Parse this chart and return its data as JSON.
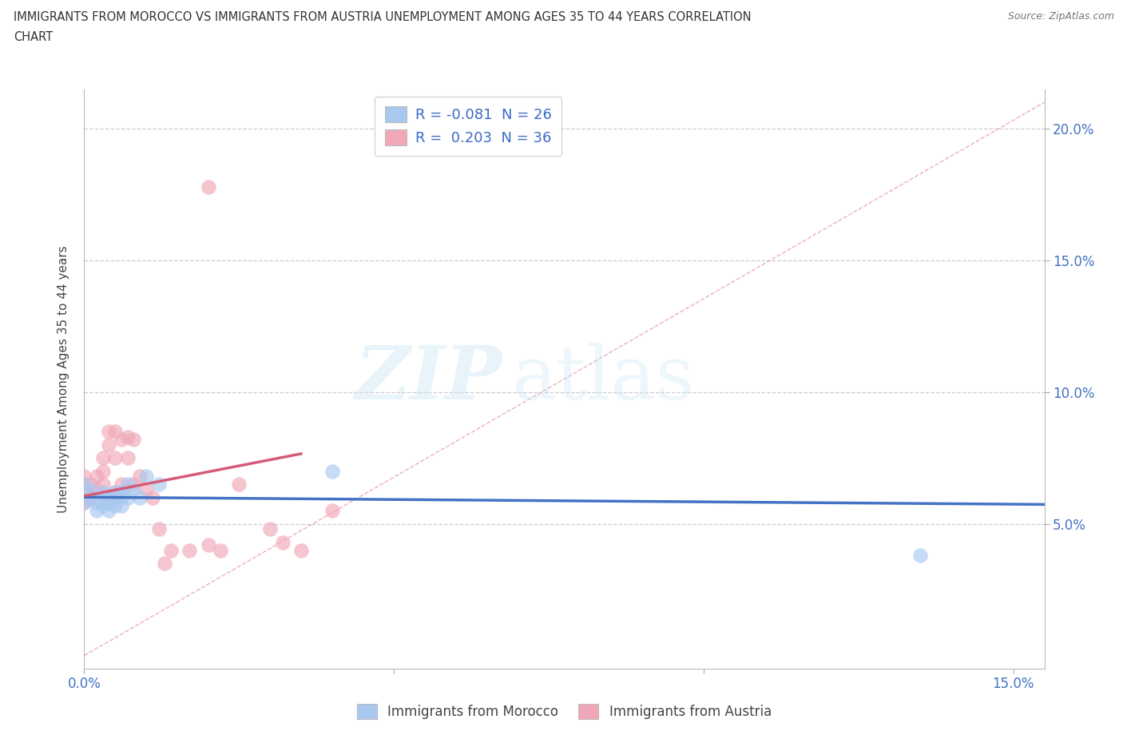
{
  "title_line1": "IMMIGRANTS FROM MOROCCO VS IMMIGRANTS FROM AUSTRIA UNEMPLOYMENT AMONG AGES 35 TO 44 YEARS CORRELATION",
  "title_line2": "CHART",
  "source": "Source: ZipAtlas.com",
  "ylabel": "Unemployment Among Ages 35 to 44 years",
  "xlim": [
    0.0,
    0.155
  ],
  "ylim": [
    -0.005,
    0.215
  ],
  "morocco_R": -0.081,
  "morocco_N": 26,
  "austria_R": 0.203,
  "austria_N": 36,
  "morocco_color": "#a8c8f0",
  "austria_color": "#f0a8b8",
  "morocco_line_color": "#4472c4",
  "austria_line_color": "#d45b7a",
  "diagonal_color": "#e8b0b8",
  "watermark_zip": "ZIP",
  "watermark_atlas": "atlas",
  "morocco_x": [
    0.0,
    0.0,
    0.001,
    0.001,
    0.002,
    0.002,
    0.003,
    0.003,
    0.003,
    0.004,
    0.004,
    0.004,
    0.005,
    0.005,
    0.005,
    0.006,
    0.006,
    0.006,
    0.007,
    0.007,
    0.008,
    0.009,
    0.01,
    0.012,
    0.04,
    0.135
  ],
  "morocco_y": [
    0.065,
    0.058,
    0.063,
    0.06,
    0.058,
    0.055,
    0.062,
    0.06,
    0.057,
    0.06,
    0.058,
    0.055,
    0.062,
    0.06,
    0.057,
    0.062,
    0.06,
    0.057,
    0.065,
    0.06,
    0.063,
    0.06,
    0.068,
    0.065,
    0.07,
    0.038
  ],
  "austria_x": [
    0.0,
    0.0,
    0.0,
    0.001,
    0.001,
    0.002,
    0.002,
    0.003,
    0.003,
    0.003,
    0.004,
    0.004,
    0.005,
    0.005,
    0.005,
    0.006,
    0.006,
    0.007,
    0.007,
    0.008,
    0.008,
    0.009,
    0.01,
    0.011,
    0.012,
    0.013,
    0.014,
    0.017,
    0.02,
    0.022,
    0.025,
    0.03,
    0.032,
    0.035,
    0.04,
    0.02
  ],
  "austria_y": [
    0.068,
    0.063,
    0.058,
    0.065,
    0.06,
    0.068,
    0.063,
    0.075,
    0.07,
    0.065,
    0.085,
    0.08,
    0.085,
    0.075,
    0.062,
    0.082,
    0.065,
    0.083,
    0.075,
    0.082,
    0.065,
    0.068,
    0.063,
    0.06,
    0.048,
    0.035,
    0.04,
    0.04,
    0.042,
    0.04,
    0.065,
    0.048,
    0.043,
    0.04,
    0.055,
    0.178
  ]
}
